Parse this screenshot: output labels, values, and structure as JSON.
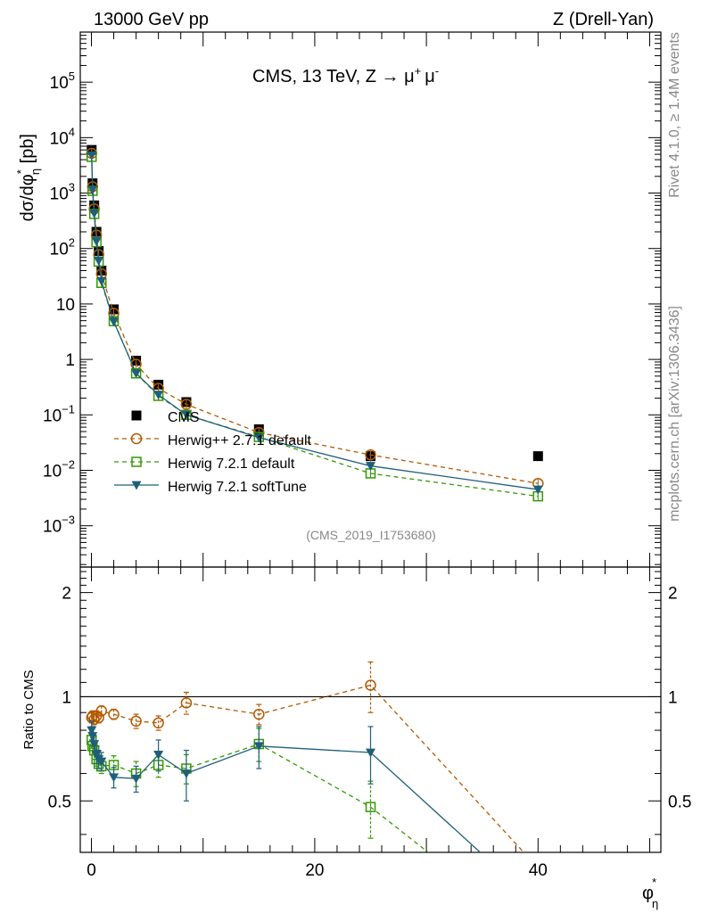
{
  "header": {
    "left": "13000 GeV pp",
    "right": "Z (Drell-Yan)"
  },
  "side_labels": {
    "rivet": "Rivet 4.1.0, ≥ 1.4M events",
    "mcplots": "mcplots.cern.ch [arXiv:1306.3436]"
  },
  "chart_data": [
    {
      "type": "line",
      "panel": "main",
      "title": "CMS, 13 TeV, Z → μ⁺μ⁻",
      "title_parts": {
        "prefix": "CMS, 13 TeV, Z → ",
        "mu": "μ",
        "plus": "+",
        "minus": "-"
      },
      "analysis_id": "(CMS_2019_I1753680)",
      "ylabel": "dσ/dφ*η [pb]",
      "ylabel_parts": {
        "main": "dσ/dφ",
        "sup": "*",
        "sub": "η",
        "unit": " [pb]"
      },
      "xlabel": "φ*η",
      "xlabel_parts": {
        "main": "φ",
        "sup": "*",
        "sub": "η"
      },
      "yscale": "log",
      "xlim": [
        -1,
        51
      ],
      "ylim": [
        0.00018,
        800000
      ],
      "x_ticks": [
        0,
        20,
        40
      ],
      "y_tick_labels": [
        {
          "value": 100000,
          "base": "10",
          "exp": "5"
        },
        {
          "value": 10000,
          "base": "10",
          "exp": "4"
        },
        {
          "value": 1000,
          "base": "10",
          "exp": "3"
        },
        {
          "value": 100,
          "base": "10",
          "exp": "2"
        },
        {
          "value": 10,
          "base": "10",
          "exp": ""
        },
        {
          "value": 1,
          "base": "1",
          "exp": ""
        },
        {
          "value": 0.1,
          "base": "10",
          "exp": "−1"
        },
        {
          "value": 0.01,
          "base": "10",
          "exp": "−2"
        },
        {
          "value": 0.001,
          "base": "10",
          "exp": "−3"
        }
      ],
      "legend_position": "middle-left",
      "series": [
        {
          "name": "CMS",
          "style": "data",
          "color": "#000000",
          "marker": "filled-square",
          "x": [
            0.02,
            0.1,
            0.25,
            0.45,
            0.65,
            0.9,
            2.0,
            4.0,
            6.0,
            8.5,
            15.0,
            25.0,
            40.0
          ],
          "y": [
            6000,
            1500,
            600,
            200,
            90,
            40,
            8,
            0.95,
            0.35,
            0.17,
            0.055,
            0.018,
            0.018
          ]
        },
        {
          "name": "Herwig++ 2.7.1 default",
          "style": "dashed",
          "color": "#b35900",
          "marker": "open-circle",
          "x": [
            0.02,
            0.1,
            0.25,
            0.45,
            0.65,
            0.9,
            2.0,
            4.0,
            6.0,
            8.5,
            15.0,
            25.0,
            40.0
          ],
          "y": [
            5200,
            1300,
            520,
            175,
            78,
            35,
            6.8,
            0.82,
            0.3,
            0.155,
            0.048,
            0.019,
            0.0058
          ]
        },
        {
          "name": "Herwig 7.2.1 default",
          "style": "dashed",
          "color": "#339900",
          "marker": "open-square",
          "x": [
            0.02,
            0.1,
            0.25,
            0.45,
            0.65,
            0.9,
            2.0,
            4.0,
            6.0,
            8.5,
            15.0,
            25.0,
            40.0
          ],
          "y": [
            4500,
            1100,
            420,
            130,
            58,
            24,
            4.9,
            0.56,
            0.22,
            0.1,
            0.04,
            0.0088,
            0.0034
          ]
        },
        {
          "name": "Herwig 7.2.1 softTune",
          "style": "solid",
          "color": "#1f5f7a",
          "marker": "filled-down-triangle",
          "x": [
            0.02,
            0.1,
            0.25,
            0.45,
            0.65,
            0.9,
            2.0,
            4.0,
            6.0,
            8.5,
            15.0,
            25.0,
            40.0
          ],
          "y": [
            4800,
            1150,
            430,
            135,
            60,
            26,
            4.8,
            0.56,
            0.23,
            0.1,
            0.039,
            0.012,
            0.0045
          ]
        }
      ]
    },
    {
      "type": "line",
      "panel": "ratio",
      "ylabel": "Ratio to CMS",
      "xlim": [
        -1,
        51
      ],
      "ylim": [
        0.355,
        2.37
      ],
      "yscale": "log",
      "y_tick_labels": [
        {
          "value": 2,
          "label": "2"
        },
        {
          "value": 1,
          "label": "1"
        },
        {
          "value": 0.5,
          "label": "0.5"
        }
      ],
      "reference_line": 1,
      "series": [
        {
          "name": "Herwig++ 2.7.1 default",
          "style": "dashed",
          "color": "#b35900",
          "marker": "open-circle",
          "x": [
            0.02,
            0.1,
            0.25,
            0.45,
            0.65,
            0.9,
            2.0,
            4.0,
            6.0,
            8.5,
            15.0,
            25.0,
            40.0
          ],
          "y": [
            0.87,
            0.88,
            0.86,
            0.88,
            0.87,
            0.91,
            0.89,
            0.85,
            0.84,
            0.96,
            0.89,
            1.08,
            0.32
          ],
          "err": [
            0.03,
            0.03,
            0.03,
            0.03,
            0.03,
            0.03,
            0.03,
            0.04,
            0.04,
            0.07,
            0.06,
            0.18,
            0.0
          ]
        },
        {
          "name": "Herwig 7.2.1 default",
          "style": "dashed",
          "color": "#339900",
          "marker": "open-square",
          "x": [
            0.02,
            0.1,
            0.25,
            0.45,
            0.65,
            0.9,
            2.0,
            4.0,
            6.0,
            8.5,
            15.0,
            25.0,
            40.0
          ],
          "y": [
            0.75,
            0.72,
            0.7,
            0.66,
            0.64,
            0.63,
            0.635,
            0.6,
            0.635,
            0.62,
            0.73,
            0.48,
            0.2
          ],
          "err": [
            0.04,
            0.04,
            0.04,
            0.03,
            0.03,
            0.03,
            0.04,
            0.05,
            0.05,
            0.06,
            0.08,
            0.09,
            0.0
          ]
        },
        {
          "name": "Herwig 7.2.1 softTune",
          "style": "solid",
          "color": "#1f5f7a",
          "marker": "filled-down-triangle",
          "x": [
            0.02,
            0.1,
            0.25,
            0.45,
            0.65,
            0.9,
            2.0,
            4.0,
            6.0,
            8.5,
            15.0,
            25.0,
            40.0
          ],
          "y": [
            0.8,
            0.77,
            0.73,
            0.68,
            0.66,
            0.65,
            0.585,
            0.58,
            0.68,
            0.6,
            0.72,
            0.69,
            0.25
          ],
          "err": [
            0.05,
            0.05,
            0.04,
            0.04,
            0.04,
            0.04,
            0.04,
            0.05,
            0.07,
            0.1,
            0.1,
            0.13,
            0.0
          ]
        }
      ]
    }
  ]
}
